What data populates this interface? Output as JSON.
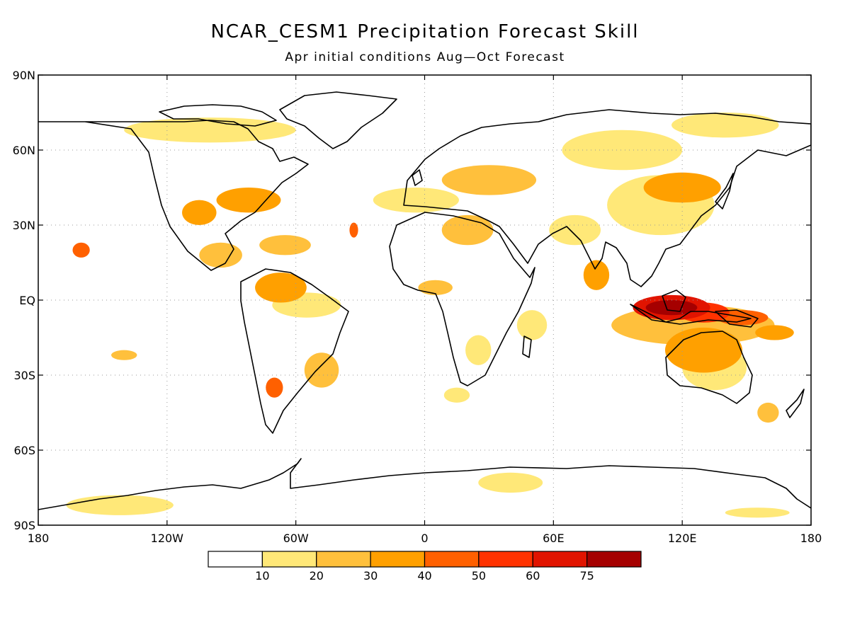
{
  "title": "NCAR_CESM1 Precipitation Forecast Skill",
  "subtitle": "Apr initial conditions  Aug—Oct Forecast",
  "lat_ticks": [
    "90N",
    "60N",
    "30N",
    "EQ",
    "30S",
    "60S",
    "90S"
  ],
  "lon_ticks": [
    "180",
    "120W",
    "60W",
    "0",
    "60E",
    "120E",
    "180"
  ],
  "colorbar": {
    "labels": [
      "10",
      "20",
      "30",
      "40",
      "50",
      "60",
      "75"
    ],
    "colors": [
      "#ffffff",
      "#ffe878",
      "#ffc03c",
      "#ffa000",
      "#ff6000",
      "#ff3200",
      "#e11400",
      "#a50000"
    ]
  },
  "chart_data": {
    "type": "heatmap",
    "title": "NCAR_CESM1 Precipitation Forecast Skill",
    "subtitle": "Apr initial conditions  Aug—Oct Forecast",
    "x_range": [
      -180,
      180
    ],
    "y_range": [
      -90,
      90
    ],
    "x_ticks": [
      -180,
      -120,
      -60,
      0,
      60,
      120,
      180
    ],
    "y_ticks": [
      90,
      60,
      30,
      0,
      -30,
      -60,
      -90
    ],
    "grid": true,
    "levels": [
      10,
      20,
      30,
      40,
      50,
      60,
      75
    ],
    "regions": [
      {
        "lon": 115,
        "lat": -3,
        "rx": 18,
        "ry": 5,
        "level": 60
      },
      {
        "lon": 115,
        "lat": -3,
        "rx": 12,
        "ry": 3,
        "level": 75
      },
      {
        "lon": 130,
        "lat": -5,
        "rx": 12,
        "ry": 4,
        "level": 50
      },
      {
        "lon": 148,
        "lat": -7,
        "rx": 12,
        "ry": 3,
        "level": 40
      },
      {
        "lon": 125,
        "lat": -10,
        "rx": 38,
        "ry": 8,
        "level": 20
      },
      {
        "lon": 130,
        "lat": -20,
        "rx": 18,
        "ry": 9,
        "level": 30
      },
      {
        "lon": 135,
        "lat": -27,
        "rx": 15,
        "ry": 9,
        "level": 10
      },
      {
        "lon": 163,
        "lat": -13,
        "rx": 9,
        "ry": 3,
        "level": 30
      },
      {
        "lon": 120,
        "lat": 45,
        "rx": 18,
        "ry": 6,
        "level": 30
      },
      {
        "lon": 110,
        "lat": 38,
        "rx": 25,
        "ry": 12,
        "level": 10
      },
      {
        "lon": 92,
        "lat": 60,
        "rx": 28,
        "ry": 8,
        "level": 10
      },
      {
        "lon": 30,
        "lat": 48,
        "rx": 22,
        "ry": 6,
        "level": 20
      },
      {
        "lon": 20,
        "lat": 28,
        "rx": 12,
        "ry": 6,
        "level": 20
      },
      {
        "lon": 5,
        "lat": 5,
        "rx": 8,
        "ry": 3,
        "level": 20
      },
      {
        "lon": -4,
        "lat": 40,
        "rx": 20,
        "ry": 5,
        "level": 10
      },
      {
        "lon": -33,
        "lat": 28,
        "rx": 2,
        "ry": 3,
        "level": 40
      },
      {
        "lon": 70,
        "lat": 28,
        "rx": 12,
        "ry": 6,
        "level": 10
      },
      {
        "lon": 80,
        "lat": 10,
        "rx": 6,
        "ry": 6,
        "level": 30
      },
      {
        "lon": 50,
        "lat": -10,
        "rx": 7,
        "ry": 6,
        "level": 10
      },
      {
        "lon": 25,
        "lat": -20,
        "rx": 6,
        "ry": 6,
        "level": 10
      },
      {
        "lon": -67,
        "lat": 5,
        "rx": 12,
        "ry": 6,
        "level": 30
      },
      {
        "lon": -65,
        "lat": 22,
        "rx": 12,
        "ry": 4,
        "level": 20
      },
      {
        "lon": -55,
        "lat": -2,
        "rx": 16,
        "ry": 5,
        "level": 10
      },
      {
        "lon": -48,
        "lat": -28,
        "rx": 8,
        "ry": 7,
        "level": 20
      },
      {
        "lon": -70,
        "lat": -35,
        "rx": 4,
        "ry": 4,
        "level": 40
      },
      {
        "lon": -82,
        "lat": 40,
        "rx": 15,
        "ry": 5,
        "level": 30
      },
      {
        "lon": -105,
        "lat": 35,
        "rx": 8,
        "ry": 5,
        "level": 30
      },
      {
        "lon": -95,
        "lat": 18,
        "rx": 10,
        "ry": 5,
        "level": 20
      },
      {
        "lon": -160,
        "lat": 20,
        "rx": 4,
        "ry": 3,
        "level": 40
      },
      {
        "lon": -140,
        "lat": -22,
        "rx": 6,
        "ry": 2,
        "level": 20
      },
      {
        "lon": 15,
        "lat": -38,
        "rx": 6,
        "ry": 3,
        "level": 10
      },
      {
        "lon": 40,
        "lat": -73,
        "rx": 15,
        "ry": 4,
        "level": 10
      },
      {
        "lon": -142,
        "lat": -82,
        "rx": 25,
        "ry": 4,
        "level": 10
      },
      {
        "lon": 160,
        "lat": -45,
        "rx": 5,
        "ry": 4,
        "level": 20
      },
      {
        "lon": 155,
        "lat": -85,
        "rx": 15,
        "ry": 2,
        "level": 10
      },
      {
        "lon": -100,
        "lat": 68,
        "rx": 40,
        "ry": 5,
        "level": 10
      },
      {
        "lon": 140,
        "lat": 70,
        "rx": 25,
        "ry": 5,
        "level": 10
      }
    ]
  }
}
